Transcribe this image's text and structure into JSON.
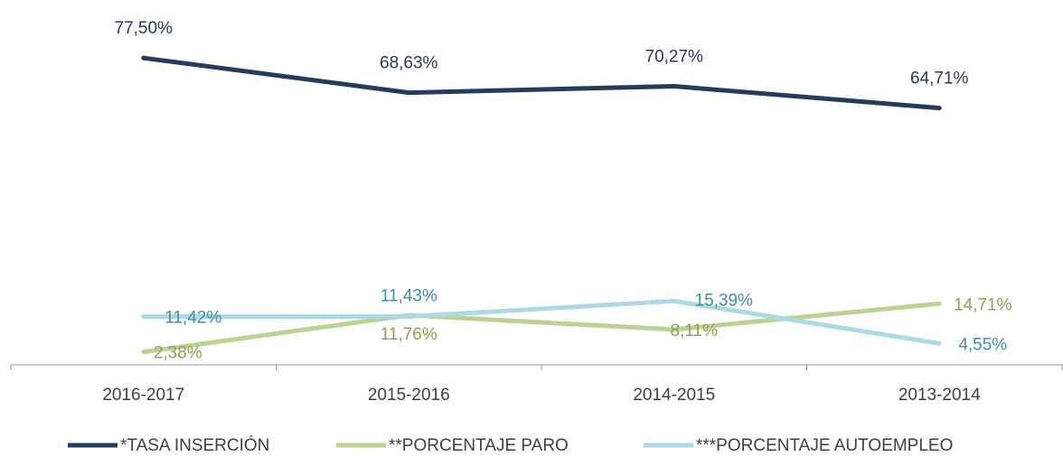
{
  "chart_data": {
    "type": "line",
    "categories": [
      "2016-2017",
      "2015-2016",
      "2014-2015",
      "2013-2014"
    ],
    "ylim": [
      0,
      90
    ],
    "series": [
      {
        "name": "*TASA INSERCIÓN",
        "color": "#243a5e",
        "label_color": "#243a5e",
        "values": [
          77.5,
          68.63,
          70.27,
          64.71
        ],
        "value_labels": [
          "77,50%",
          "68,63%",
          "70,27%",
          "64,71%"
        ]
      },
      {
        "name": "**PORCENTAJE PARO",
        "color": "#bcd192",
        "label_color": "#8da24f",
        "values": [
          2.38,
          11.76,
          8.11,
          14.71
        ],
        "value_labels": [
          "2,38%",
          "11,76%",
          "8,11%",
          "14,71%"
        ]
      },
      {
        "name": "***PORCENTAJE AUTOEMPLEO",
        "color": "#acd9e4",
        "label_color": "#3f8fa4",
        "values": [
          11.42,
          11.43,
          15.39,
          4.55
        ],
        "value_labels": [
          "11,42%",
          "11,43%",
          "15,39%",
          "4,55%"
        ]
      }
    ]
  }
}
